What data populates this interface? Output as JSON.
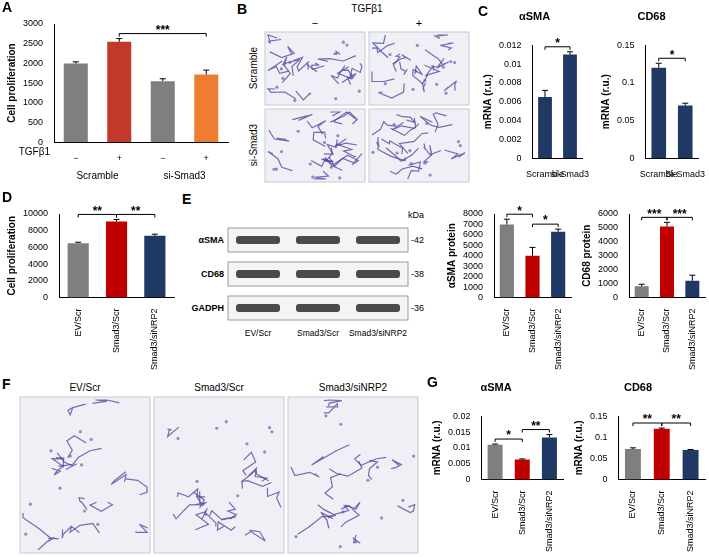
{
  "chart_data": [
    {
      "type": "bar",
      "panel": "A",
      "ylabel": "Cell proliferation",
      "xlabel": "TGFβ1",
      "categories": [
        "−",
        "+",
        "−",
        "+"
      ],
      "groups": [
        {
          "label": "Scramble",
          "from": 0,
          "to": 1
        },
        {
          "label": "si-Smad3",
          "from": 2,
          "to": 3
        }
      ],
      "values": [
        2000,
        2550,
        1550,
        1720
      ],
      "errors": [
        40,
        80,
        60,
        110
      ],
      "colors": [
        "#7f7f7f",
        "#c0392b",
        "#7f7f7f",
        "#ed7d31"
      ],
      "ylim": [
        0,
        3000
      ],
      "yticks": [
        0,
        500,
        1000,
        1500,
        2000,
        2500,
        3000
      ],
      "grid": false,
      "annotations": [
        {
          "text": "***",
          "from": 1,
          "to": 3
        }
      ]
    },
    {
      "type": "bar",
      "panel": "C",
      "title": "αSMA",
      "ylabel": "mRNA (r.u.)",
      "categories": [
        "Scramble",
        "si-Smad3"
      ],
      "values": [
        0.0065,
        0.011
      ],
      "errors": [
        0.0007,
        0.0003
      ],
      "color": "#1f3864",
      "ylim": [
        0,
        0.012
      ],
      "yticks": [
        0,
        0.002,
        0.004,
        0.006,
        0.008,
        0.01,
        0.012
      ],
      "grid": false,
      "annotations": [
        {
          "text": "*",
          "from": 0,
          "to": 1
        }
      ]
    },
    {
      "type": "bar",
      "title": "CD68",
      "ylabel": "mRNA (r.u.)",
      "categories": [
        "Scramble",
        "Si-Smad3"
      ],
      "values": [
        0.12,
        0.07
      ],
      "errors": [
        0.006,
        0.003
      ],
      "color": "#1f3864",
      "ylim": [
        0,
        0.15
      ],
      "yticks": [
        0,
        0.05,
        0.1,
        0.15
      ],
      "grid": false,
      "annotations": [
        {
          "text": "*",
          "from": 0,
          "to": 1
        }
      ]
    },
    {
      "type": "bar",
      "panel": "D",
      "ylabel": "Cell proliferation",
      "categories": [
        "EV/Scr",
        "Smad3/Scr",
        "Smad3/siNRP2"
      ],
      "values": [
        6500,
        9100,
        7400
      ],
      "errors": [
        120,
        250,
        180
      ],
      "colors": [
        "#7f7f7f",
        "#c00000",
        "#1f3864"
      ],
      "ylim": [
        0,
        10000
      ],
      "yticks": [
        0,
        2000,
        4000,
        6000,
        8000,
        10000
      ],
      "grid": false,
      "annotations": [
        {
          "text": "**",
          "from": 0,
          "to": 1
        },
        {
          "text": "**",
          "from": 1,
          "to": 2
        }
      ]
    },
    {
      "type": "bar",
      "ylabel": "αSMA protein",
      "categories": [
        "EV/Scr",
        "Smad3/Scr",
        "Smad3/siNRP2"
      ],
      "values": [
        7000,
        4000,
        6300
      ],
      "errors": [
        500,
        800,
        250
      ],
      "colors": [
        "#7f7f7f",
        "#c00000",
        "#1f3864"
      ],
      "ylim": [
        0,
        8000
      ],
      "yticks": [
        0,
        1000,
        2000,
        3000,
        4000,
        5000,
        6000,
        7000,
        8000
      ],
      "grid": false,
      "annotations": [
        {
          "text": "*",
          "from": 0,
          "to": 1
        },
        {
          "text": "*",
          "from": 1,
          "to": 2
        }
      ]
    },
    {
      "type": "bar",
      "ylabel": "CD68 protein",
      "categories": [
        "EV/Scr",
        "Smad3/Scr",
        "Smad3/siNRP2"
      ],
      "values": [
        800,
        5100,
        1200
      ],
      "errors": [
        150,
        300,
        400
      ],
      "colors": [
        "#7f7f7f",
        "#c00000",
        "#1f3864"
      ],
      "ylim": [
        0,
        6000
      ],
      "yticks": [
        0,
        1000,
        2000,
        3000,
        4000,
        5000,
        6000
      ],
      "grid": false,
      "annotations": [
        {
          "text": "***",
          "from": 0,
          "to": 1
        },
        {
          "text": "***",
          "from": 1,
          "to": 2
        }
      ]
    },
    {
      "type": "bar",
      "panel": "G",
      "title": "αSMA",
      "ylabel": "mRNA (r.u.)",
      "categories": [
        "EV/Scr",
        "Smad3/Scr",
        "Smad3/siNRP2"
      ],
      "values": [
        0.011,
        0.0063,
        0.0133
      ],
      "errors": [
        0.0002,
        0.0002,
        0.0009
      ],
      "colors": [
        "#7f7f7f",
        "#c00000",
        "#1f3864"
      ],
      "ylim": [
        0,
        0.02
      ],
      "yticks": [
        0,
        0.005,
        0.01,
        0.015,
        0.02
      ],
      "grid": false,
      "annotations": [
        {
          "text": "*",
          "from": 0,
          "to": 1
        },
        {
          "text": "**",
          "from": 1,
          "to": 2
        }
      ]
    },
    {
      "type": "bar",
      "title": "CD68",
      "ylabel": "mRNA (r.u.)",
      "categories": [
        "EV/Scr",
        "Smad3/Scr",
        "Smad3/siNRP2"
      ],
      "values": [
        0.072,
        0.12,
        0.07
      ],
      "errors": [
        0.003,
        0.002,
        0.001
      ],
      "colors": [
        "#7f7f7f",
        "#c00000",
        "#1f3864"
      ],
      "ylim": [
        0,
        0.15
      ],
      "yticks": [
        0,
        0.05,
        0.1,
        0.15
      ],
      "grid": false,
      "annotations": [
        {
          "text": "**",
          "from": 0,
          "to": 1
        },
        {
          "text": "**",
          "from": 1,
          "to": 2
        }
      ]
    }
  ],
  "images": [
    {
      "panel": "B",
      "title": "TGFβ1",
      "columns": [
        "−",
        "+"
      ],
      "rows": [
        "Scramble",
        "si-Smad3"
      ]
    },
    {
      "panel": "F",
      "columns": [
        "EV/Scr",
        "Smad3/Scr",
        "Smad3/siNRP2"
      ]
    }
  ],
  "blot": {
    "panel": "E",
    "unit": "kDa",
    "rows": [
      {
        "label": "αSMA",
        "size": "-42"
      },
      {
        "label": "CD68",
        "size": "-38"
      },
      {
        "label": "GADPH",
        "size": "-36"
      }
    ],
    "lanes": [
      "EV/Scr",
      "Smad3/Scr",
      "Smad3/siNRP2"
    ]
  }
}
